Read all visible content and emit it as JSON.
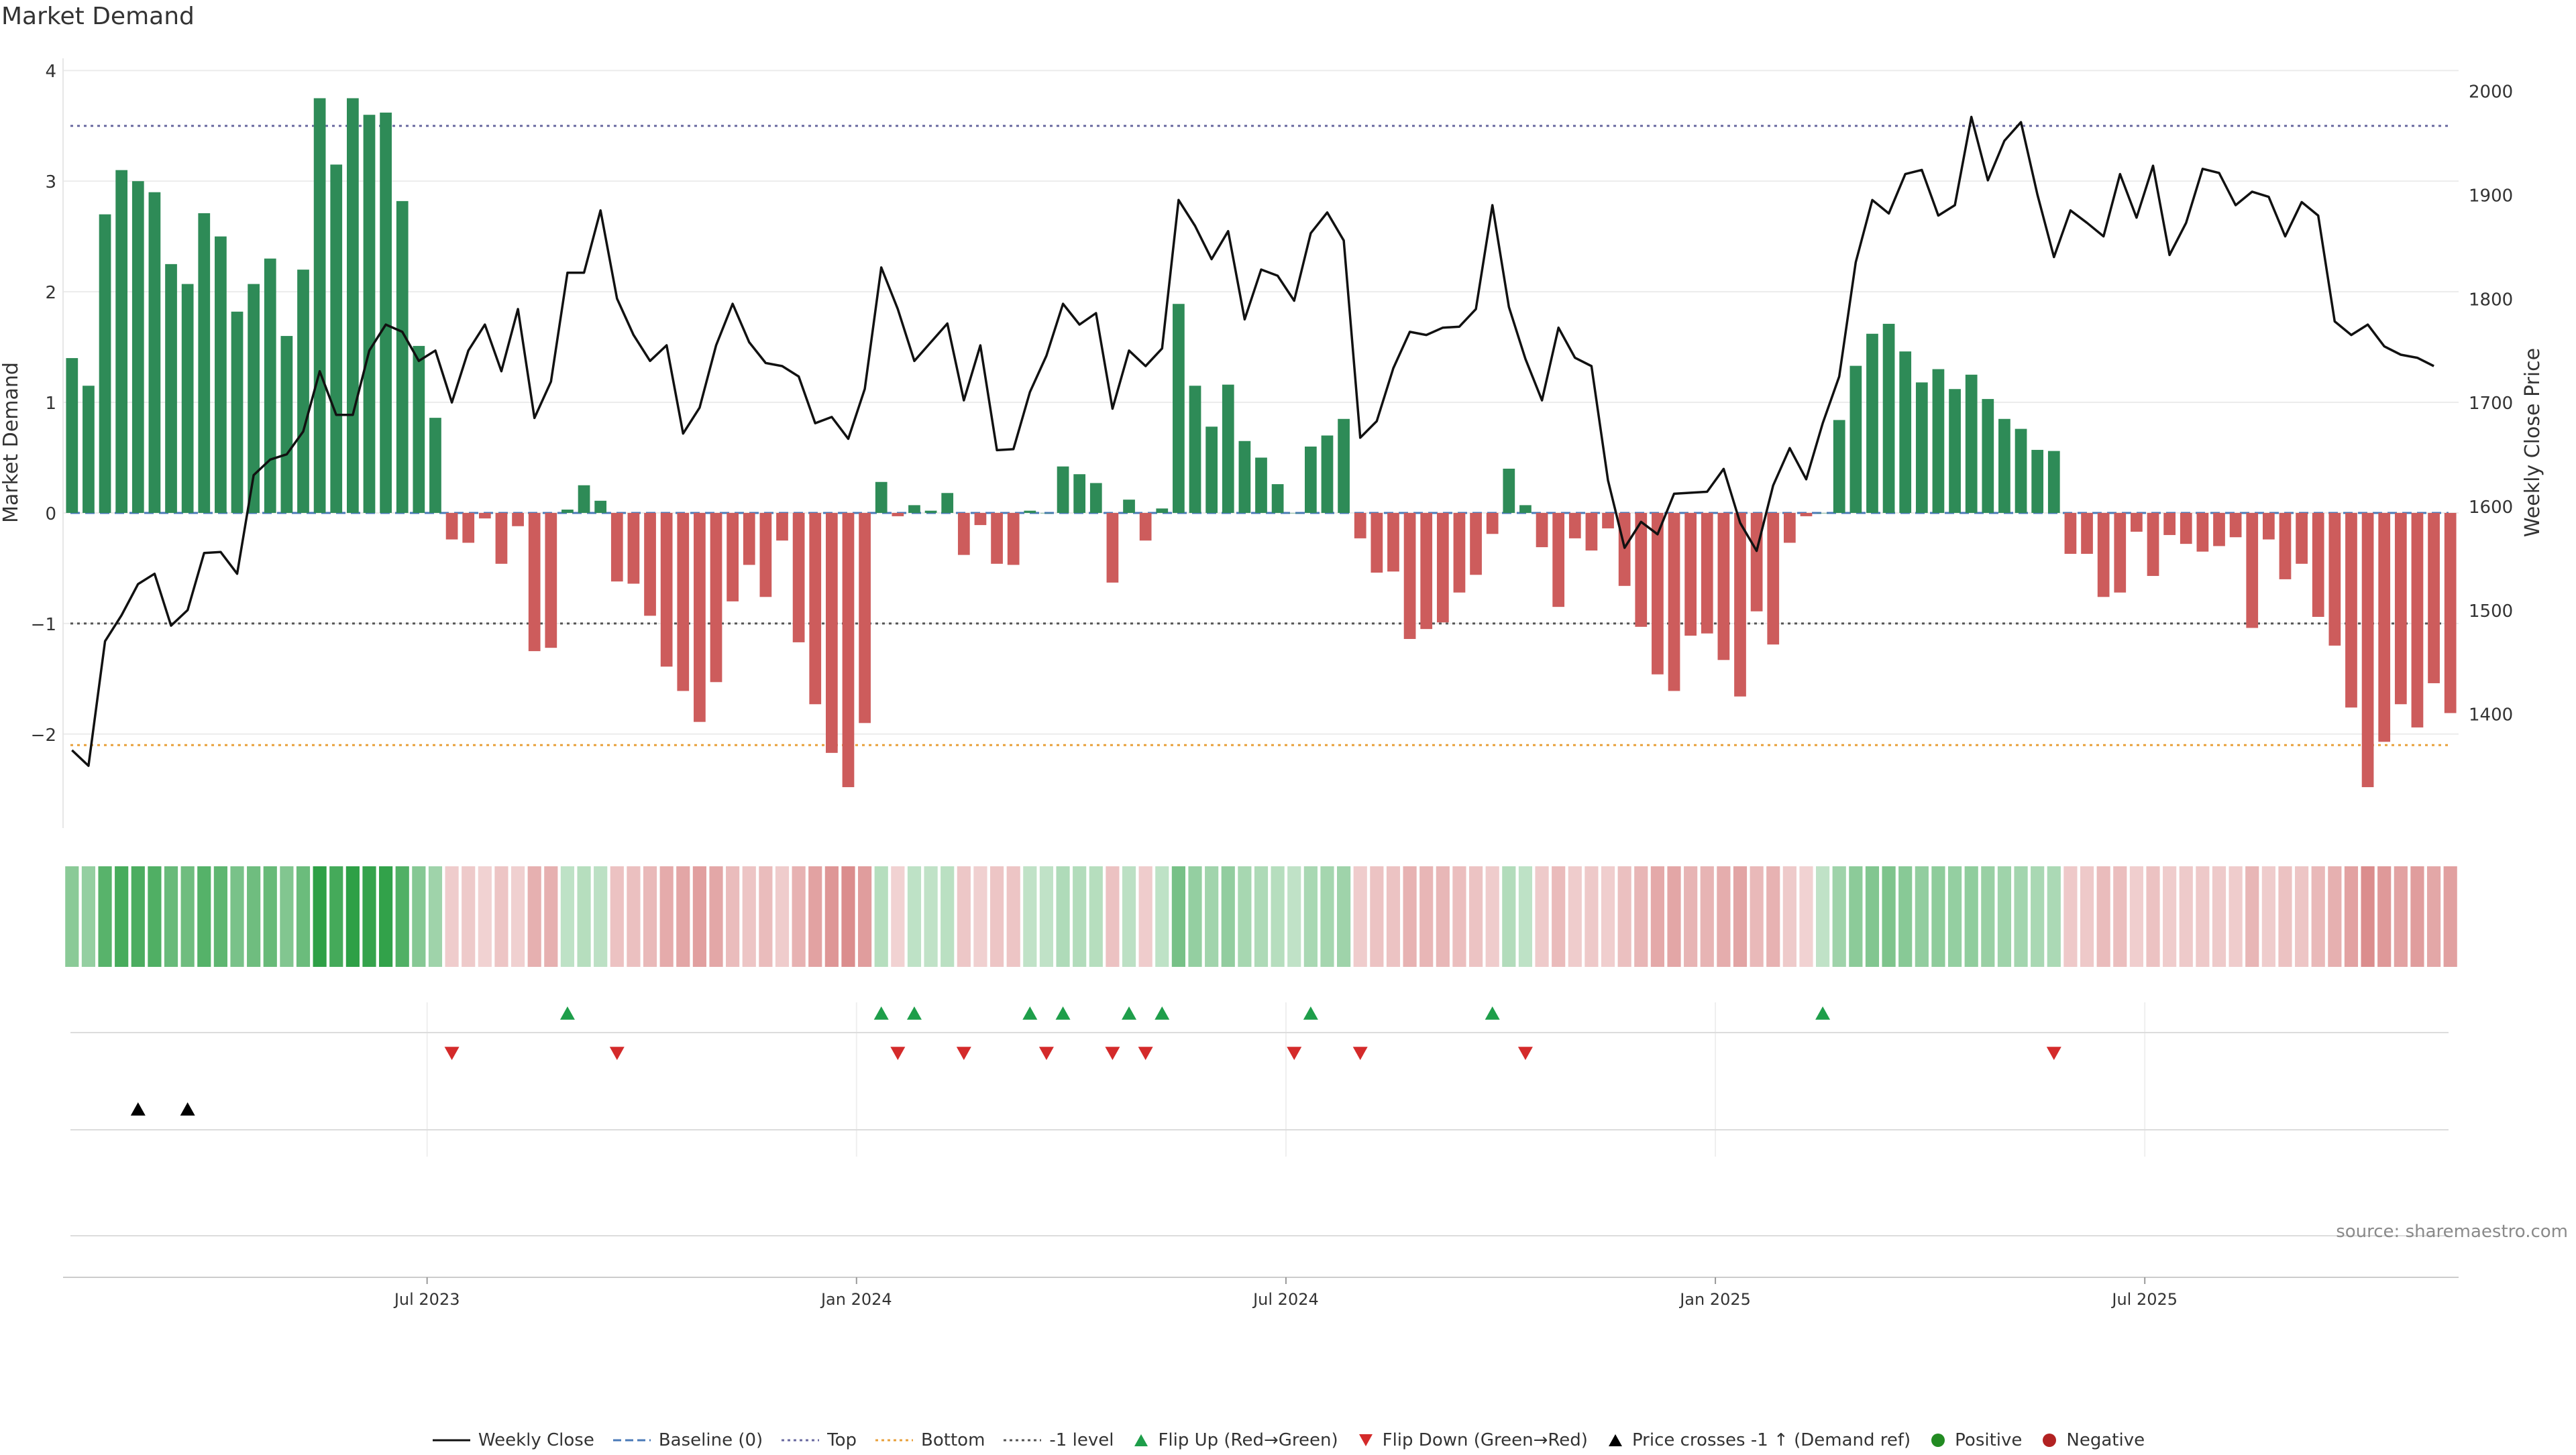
{
  "chart_data": {
    "type": "bar",
    "title": "Market Demand",
    "source_note": "source: sharemaestro.com",
    "ylabel": "Market Demand",
    "ylabel_right": "Weekly Close Price",
    "ylim": [
      -2.85,
      4.05
    ],
    "ylim_right": [
      1290,
      2025
    ],
    "y_ticks": [
      4,
      3,
      2,
      1,
      0,
      -1,
      -2
    ],
    "y_tick_labels": [
      "4",
      "3",
      "2",
      "1",
      "0",
      "−1",
      "−2"
    ],
    "y_ticks_right": [
      2000,
      1900,
      1800,
      1700,
      1600,
      1500,
      1400
    ],
    "y_tick_labels_right": [
      "2000",
      "1900",
      "1800",
      "1700",
      "1600",
      "1500",
      "1400"
    ],
    "x_tick_labels": [
      "Jul 2023",
      "Jan 2024",
      "Jul 2024",
      "Jan 2025",
      "Jul 2025"
    ],
    "x_tick_index": [
      22,
      48,
      74,
      100,
      126
    ],
    "reference_lines": {
      "top": 3.5,
      "bottom": -2.1,
      "minus_one": -1,
      "baseline": 0
    },
    "colors": {
      "positive": "#2e8b57",
      "negative": "#cd5c5c",
      "price": "#111111",
      "top_line": "#6a6aa0",
      "bottom_line": "#e8a13c",
      "minus_one_line": "#555555",
      "baseline": "#4a7ab8",
      "flip_up": "#1e9e4a",
      "flip_down": "#d42a2a",
      "cross_up": "#000000",
      "positive_dot": "#228b22",
      "negative_dot": "#b22222"
    },
    "series": [
      {
        "name": "Market Demand",
        "values": [
          1.4,
          1.15,
          2.7,
          3.1,
          3.0,
          2.9,
          2.25,
          2.07,
          2.71,
          2.5,
          1.82,
          2.07,
          2.3,
          1.6,
          2.2,
          3.75,
          3.15,
          3.75,
          3.6,
          3.62,
          2.82,
          1.51,
          0.86,
          -0.24,
          -0.27,
          -0.05,
          -0.46,
          -0.12,
          -1.25,
          -1.22,
          0.03,
          0.25,
          0.11,
          -0.62,
          -0.64,
          -0.93,
          -1.39,
          -1.61,
          -1.89,
          -1.53,
          -0.8,
          -0.47,
          -0.76,
          -0.25,
          -1.17,
          -1.73,
          -2.17,
          -2.48,
          -1.9,
          0.28,
          -0.03,
          0.07,
          0.02,
          0.18,
          -0.38,
          -0.11,
          -0.46,
          -0.47,
          0.02,
          0.0,
          0.42,
          0.35,
          0.27,
          -0.63,
          0.12,
          -0.25,
          0.04,
          1.89,
          1.15,
          0.78,
          1.16,
          0.65,
          0.5,
          0.26,
          0.0,
          0.6,
          0.7,
          0.85,
          -0.23,
          -0.54,
          -0.53,
          -1.14,
          -1.05,
          -0.99,
          -0.72,
          -0.56,
          -0.19,
          0.4,
          0.07,
          -0.31,
          -0.85,
          -0.23,
          -0.34,
          -0.14,
          -0.66,
          -1.03,
          -1.46,
          -1.61,
          -1.11,
          -1.09,
          -1.33,
          -1.66,
          -0.89,
          -1.19,
          -0.27,
          -0.03,
          0.0,
          0.84,
          1.33,
          1.62,
          1.71,
          1.46,
          1.18,
          1.3,
          1.12,
          1.25,
          1.03,
          0.85,
          0.76,
          0.57,
          0.56,
          -0.37,
          -0.37,
          -0.76,
          -0.72,
          -0.17,
          -0.57,
          -0.2,
          -0.28,
          -0.35,
          -0.3,
          -0.22,
          -1.04,
          -0.24,
          -0.6,
          -0.46,
          -0.94,
          -1.2,
          -1.76,
          -2.48,
          -2.07,
          -1.73,
          -1.94,
          -1.54,
          -1.81
        ]
      },
      {
        "name": "Weekly Close",
        "axis": "right",
        "values": [
          1365,
          1350,
          1470,
          1495,
          1525,
          1535,
          1485,
          1500,
          1555,
          1556,
          1535,
          1630,
          1645,
          1650,
          1672,
          1730,
          1688,
          1688,
          1750,
          1775,
          1768,
          1740,
          1750,
          1700,
          1750,
          1775,
          1730,
          1790,
          1685,
          1720,
          1825,
          1825,
          1885,
          1800,
          1765,
          1740,
          1755,
          1670,
          1695,
          1755,
          1795,
          1758,
          1738,
          1735,
          1725,
          1680,
          1686,
          1665,
          1713,
          1830,
          1790,
          1740,
          1758,
          1776,
          1702,
          1755,
          1654,
          1655,
          1710,
          1745,
          1795,
          1775,
          1786,
          1694,
          1750,
          1735,
          1752,
          1895,
          1870,
          1838,
          1865,
          1780,
          1828,
          1822,
          1798,
          1863,
          1883,
          1856,
          1666,
          1682,
          1733,
          1768,
          1765,
          1772,
          1773,
          1790,
          1890,
          1792,
          1742,
          1702,
          1772,
          1743,
          1735,
          1625,
          1560,
          1585,
          1573,
          1612,
          1613,
          1614,
          1636,
          1584,
          1557,
          1620,
          1656,
          1626,
          1680,
          1725,
          1835,
          1895,
          1882,
          1920,
          1924,
          1880,
          1890,
          1975,
          1914,
          1952,
          1970,
          1900,
          1840,
          1885,
          1873,
          1860,
          1920,
          1878,
          1928,
          1842,
          1873,
          1925,
          1921,
          1890,
          1903,
          1898,
          1860,
          1893,
          1880,
          1778,
          1765,
          1775,
          1754,
          1746,
          1743,
          1735
        ]
      }
    ],
    "flip_up_index": [
      30,
      49,
      51,
      58,
      60,
      64,
      66,
      75,
      86,
      106
    ],
    "flip_down_index": [
      23,
      33,
      50,
      54,
      59,
      63,
      65,
      74,
      78,
      88,
      120
    ],
    "price_cross_up_index": [
      4,
      7
    ],
    "legend": [
      {
        "label": "Weekly Close",
        "kind": "line"
      },
      {
        "label": "Baseline (0)",
        "kind": "dash"
      },
      {
        "label": "Top",
        "kind": "dot"
      },
      {
        "label": "Bottom",
        "kind": "dot-orange"
      },
      {
        "label": "-1 level",
        "kind": "dot-gray"
      },
      {
        "label": "Flip Up (Red→Green)",
        "kind": "tri-up-green"
      },
      {
        "label": "Flip Down (Green→Red)",
        "kind": "tri-down-red"
      },
      {
        "label": "Price crosses -1 ↑ (Demand ref)",
        "kind": "tri-up-black"
      },
      {
        "label": "Positive",
        "kind": "dot-green"
      },
      {
        "label": "Negative",
        "kind": "dot-red"
      }
    ]
  }
}
